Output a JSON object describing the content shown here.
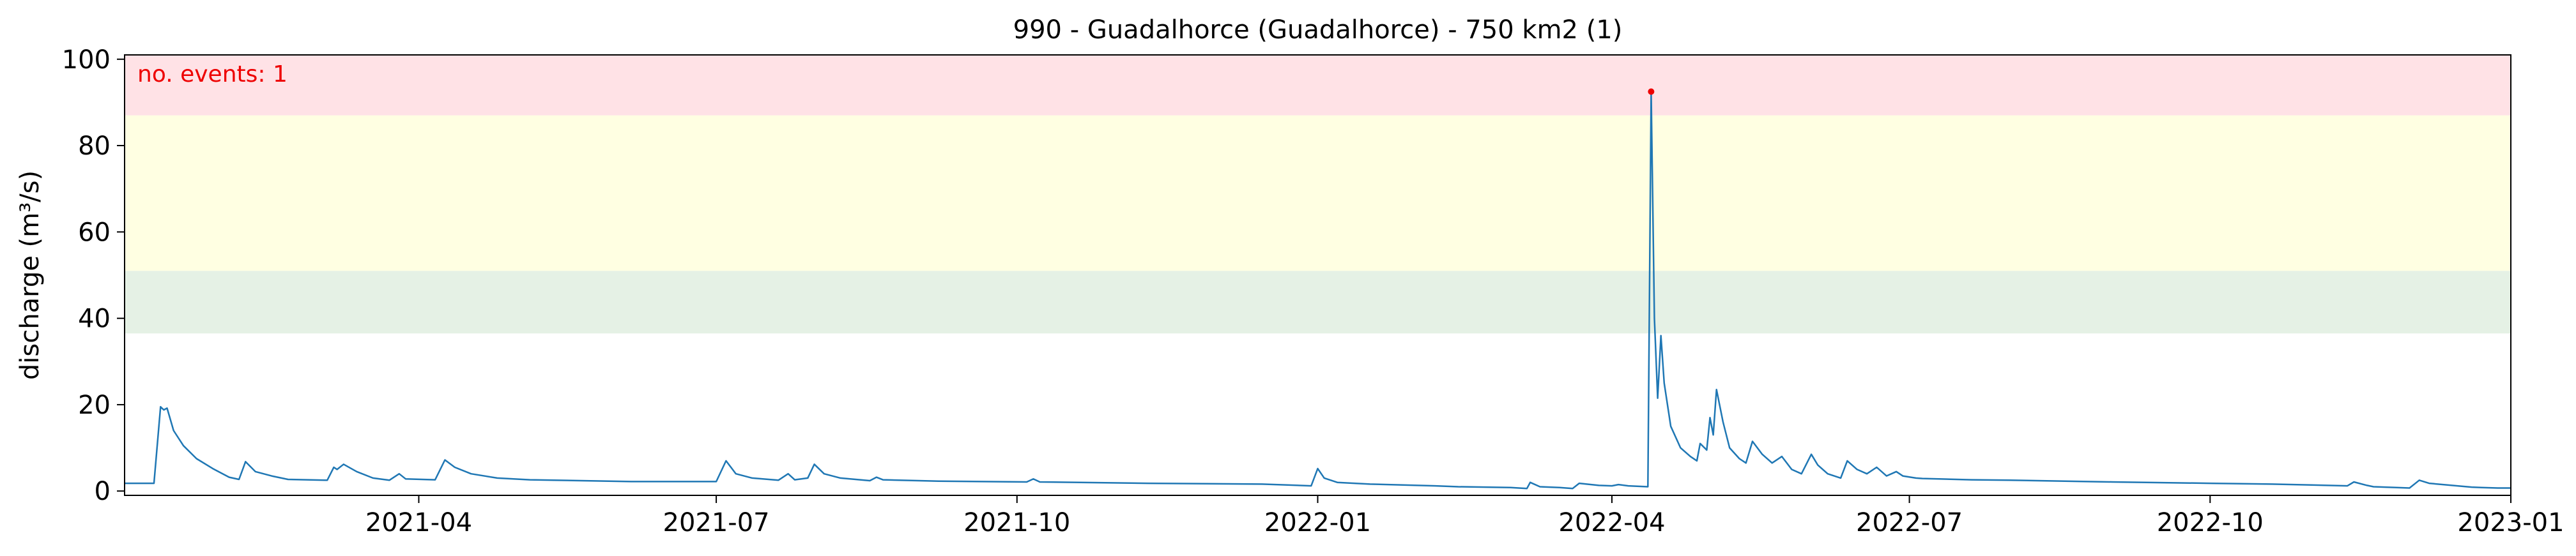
{
  "chart_data": {
    "type": "line",
    "title": "990 - Guadalhorce (Guadalhorce) - 750 km2 (1)",
    "xlabel": "",
    "ylabel": "discharge (m³/s)",
    "xlim": [
      "2021-01-01",
      "2023-01-01"
    ],
    "ylim": [
      -1,
      101
    ],
    "xticks": [
      "2021-04",
      "2021-07",
      "2021-10",
      "2022-01",
      "2022-04",
      "2022-07",
      "2022-10",
      "2023-01"
    ],
    "yticks": [
      0,
      20,
      40,
      60,
      80,
      100
    ],
    "grid": false,
    "annotation": "no. events: 1",
    "bands": [
      {
        "from": 36.5,
        "to": 51,
        "color": "#e5f1e5"
      },
      {
        "from": 51,
        "to": 87,
        "color": "#ffffe2"
      },
      {
        "from": 87,
        "to": 101,
        "color": "#ffe2e6"
      }
    ],
    "series": [
      {
        "color": "#1f77b4",
        "points": [
          [
            "2021-01-01",
            1.8
          ],
          [
            "2021-01-07",
            1.8
          ],
          [
            "2021-01-10",
            1.8
          ],
          [
            "2021-01-12",
            19.5
          ],
          [
            "2021-01-13",
            18.8
          ],
          [
            "2021-01-14",
            19.2
          ],
          [
            "2021-01-16",
            14.0
          ],
          [
            "2021-01-19",
            10.5
          ],
          [
            "2021-01-23",
            7.5
          ],
          [
            "2021-01-28",
            5.2
          ],
          [
            "2021-02-02",
            3.2
          ],
          [
            "2021-02-05",
            2.7
          ],
          [
            "2021-02-07",
            6.8
          ],
          [
            "2021-02-10",
            4.5
          ],
          [
            "2021-02-15",
            3.5
          ],
          [
            "2021-02-20",
            2.7
          ],
          [
            "2021-03-04",
            2.5
          ],
          [
            "2021-03-06",
            5.5
          ],
          [
            "2021-03-07",
            5.0
          ],
          [
            "2021-03-09",
            6.2
          ],
          [
            "2021-03-13",
            4.5
          ],
          [
            "2021-03-18",
            3.0
          ],
          [
            "2021-03-23",
            2.5
          ],
          [
            "2021-03-26",
            4.0
          ],
          [
            "2021-03-28",
            2.8
          ],
          [
            "2021-04-06",
            2.6
          ],
          [
            "2021-04-09",
            7.2
          ],
          [
            "2021-04-12",
            5.5
          ],
          [
            "2021-04-17",
            4.0
          ],
          [
            "2021-04-25",
            3.0
          ],
          [
            "2021-05-05",
            2.6
          ],
          [
            "2021-06-05",
            2.2
          ],
          [
            "2021-07-01",
            2.2
          ],
          [
            "2021-07-04",
            7.0
          ],
          [
            "2021-07-07",
            4.0
          ],
          [
            "2021-07-12",
            3.0
          ],
          [
            "2021-07-20",
            2.5
          ],
          [
            "2021-07-23",
            4.0
          ],
          [
            "2021-07-25",
            2.6
          ],
          [
            "2021-07-29",
            3.0
          ],
          [
            "2021-07-31",
            6.2
          ],
          [
            "2021-08-03",
            4.0
          ],
          [
            "2021-08-08",
            3.0
          ],
          [
            "2021-08-17",
            2.4
          ],
          [
            "2021-08-19",
            3.2
          ],
          [
            "2021-08-21",
            2.6
          ],
          [
            "2021-09-07",
            2.3
          ],
          [
            "2021-10-04",
            2.1
          ],
          [
            "2021-10-06",
            2.8
          ],
          [
            "2021-10-08",
            2.1
          ],
          [
            "2021-11-10",
            1.8
          ],
          [
            "2021-12-15",
            1.6
          ],
          [
            "2021-12-30",
            1.2
          ],
          [
            "2022-01-01",
            5.2
          ],
          [
            "2022-01-03",
            3.0
          ],
          [
            "2022-01-07",
            2.0
          ],
          [
            "2022-01-17",
            1.6
          ],
          [
            "2022-02-06",
            1.2
          ],
          [
            "2022-02-13",
            1.0
          ],
          [
            "2022-03-01",
            0.8
          ],
          [
            "2022-03-06",
            0.6
          ],
          [
            "2022-03-07",
            2.0
          ],
          [
            "2022-03-10",
            1.0
          ],
          [
            "2022-03-16",
            0.8
          ],
          [
            "2022-03-20",
            0.6
          ],
          [
            "2022-03-22",
            1.8
          ],
          [
            "2022-03-28",
            1.3
          ],
          [
            "2022-04-01",
            1.2
          ],
          [
            "2022-04-03",
            1.5
          ],
          [
            "2022-04-06",
            1.2
          ],
          [
            "2022-04-12",
            1.0
          ],
          [
            "2022-04-13",
            92.5
          ],
          [
            "2022-04-14",
            40.0
          ],
          [
            "2022-04-15",
            21.5
          ],
          [
            "2022-04-16",
            36.0
          ],
          [
            "2022-04-17",
            25.0
          ],
          [
            "2022-04-19",
            15.0
          ],
          [
            "2022-04-22",
            10.0
          ],
          [
            "2022-04-25",
            8.0
          ],
          [
            "2022-04-27",
            7.0
          ],
          [
            "2022-04-28",
            11.0
          ],
          [
            "2022-04-30",
            9.5
          ],
          [
            "2022-05-01",
            17.0
          ],
          [
            "2022-05-02",
            13.0
          ],
          [
            "2022-05-03",
            23.5
          ],
          [
            "2022-05-05",
            16.0
          ],
          [
            "2022-05-07",
            10.0
          ],
          [
            "2022-05-10",
            7.5
          ],
          [
            "2022-05-12",
            6.5
          ],
          [
            "2022-05-14",
            11.5
          ],
          [
            "2022-05-17",
            8.5
          ],
          [
            "2022-05-20",
            6.5
          ],
          [
            "2022-05-23",
            8.0
          ],
          [
            "2022-05-26",
            5.0
          ],
          [
            "2022-05-29",
            4.0
          ],
          [
            "2022-06-01",
            8.5
          ],
          [
            "2022-06-03",
            6.0
          ],
          [
            "2022-06-06",
            4.0
          ],
          [
            "2022-06-10",
            3.0
          ],
          [
            "2022-06-12",
            7.0
          ],
          [
            "2022-06-15",
            5.0
          ],
          [
            "2022-06-18",
            4.0
          ],
          [
            "2022-06-21",
            5.5
          ],
          [
            "2022-06-24",
            3.5
          ],
          [
            "2022-06-27",
            4.5
          ],
          [
            "2022-06-29",
            3.5
          ],
          [
            "2022-07-03",
            3.0
          ],
          [
            "2022-07-05",
            2.9
          ],
          [
            "2022-07-10",
            2.8
          ],
          [
            "2022-07-20",
            2.6
          ],
          [
            "2022-08-01",
            2.5
          ],
          [
            "2022-09-01",
            2.1
          ],
          [
            "2022-10-01",
            1.8
          ],
          [
            "2022-10-20",
            1.6
          ],
          [
            "2022-11-01",
            1.4
          ],
          [
            "2022-11-12",
            1.2
          ],
          [
            "2022-11-14",
            2.1
          ],
          [
            "2022-11-18",
            1.3
          ],
          [
            "2022-11-20",
            1.0
          ],
          [
            "2022-11-27",
            0.8
          ],
          [
            "2022-12-01",
            0.7
          ],
          [
            "2022-12-04",
            2.5
          ],
          [
            "2022-12-07",
            1.8
          ],
          [
            "2022-12-14",
            1.3
          ],
          [
            "2022-12-20",
            0.9
          ],
          [
            "2022-12-23",
            0.8
          ],
          [
            "2022-12-28",
            0.7
          ],
          [
            "2023-01-01",
            0.7
          ]
        ]
      }
    ],
    "event_markers": [
      {
        "x": "2022-04-13",
        "y": 92.5,
        "color": "#ee0000"
      }
    ]
  }
}
